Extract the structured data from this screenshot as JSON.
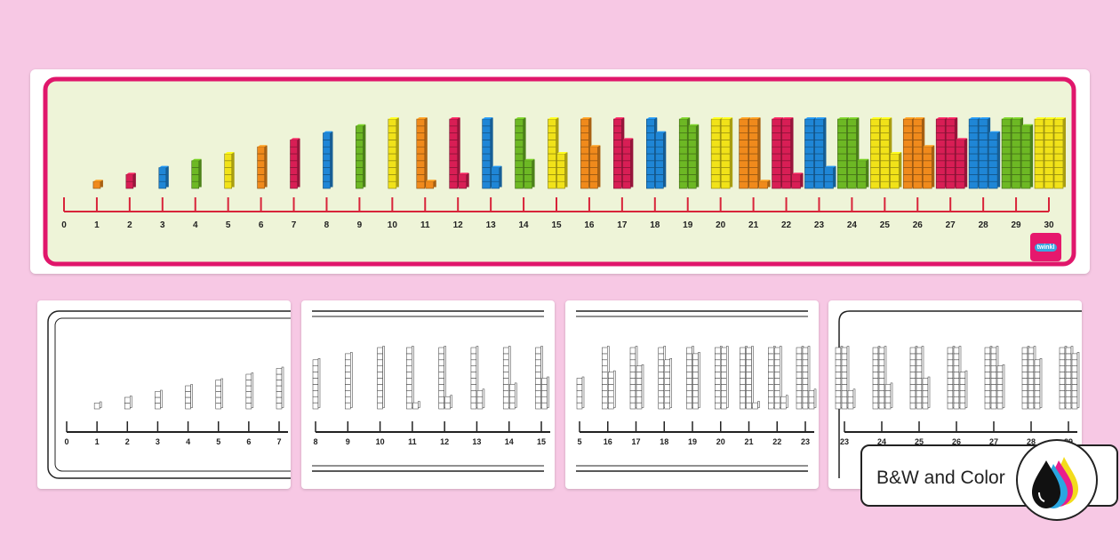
{
  "number_line": {
    "labels": [
      "0",
      "1",
      "2",
      "3",
      "4",
      "5",
      "6",
      "7",
      "8",
      "9",
      "10",
      "11",
      "12",
      "13",
      "14",
      "15",
      "16",
      "17",
      "18",
      "19",
      "20",
      "21",
      "22",
      "23",
      "24",
      "25",
      "26",
      "27",
      "28",
      "29",
      "30"
    ],
    "tower_colors": [
      "#f1e219",
      "#f08a1c",
      "#d81e55",
      "#1f86d6",
      "#6db824"
    ],
    "frame_color": "#e0166b",
    "background_color": "#eef4d8",
    "line_color": "#d8243a"
  },
  "logo": {
    "text": "twinkl"
  },
  "pages": [
    {
      "labels": [
        "0",
        "1",
        "2",
        "3",
        "4",
        "5",
        "6",
        "7"
      ]
    },
    {
      "labels": [
        "8",
        "9",
        "10",
        "11",
        "12",
        "13",
        "14",
        "15"
      ]
    },
    {
      "labels": [
        "5",
        "16",
        "17",
        "18",
        "19",
        "20",
        "21",
        "22",
        "23"
      ]
    },
    {
      "labels": [
        "23",
        "24",
        "25",
        "26",
        "27",
        "28",
        "29"
      ]
    }
  ],
  "badge": {
    "label": "B&W and Color",
    "icon": "ink-drops-icon"
  }
}
